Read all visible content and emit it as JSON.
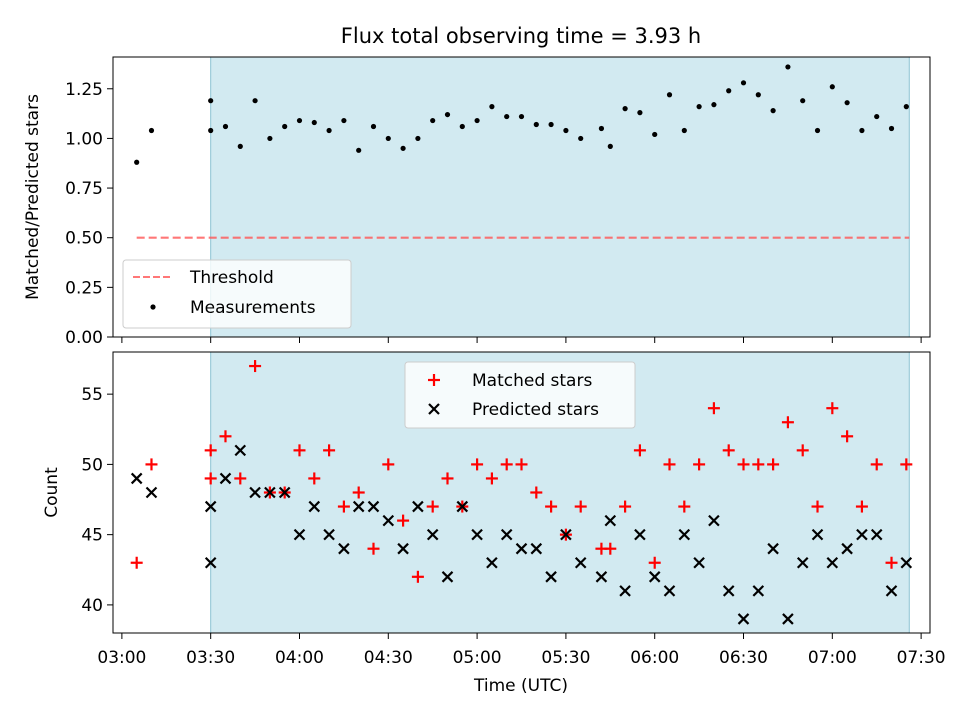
{
  "chart_data": [
    {
      "type": "scatter",
      "title": "Flux total observing time = 3.93 h",
      "ylabel": "Matched/Predicted stars",
      "xlabel": "",
      "xlim": [
        "02:57",
        "07:33"
      ],
      "ylim": [
        0,
        1.41
      ],
      "yticks": [
        "0.00",
        "0.25",
        "0.50",
        "0.75",
        "1.00",
        "1.25"
      ],
      "ytick_values": [
        0,
        0.25,
        0.5,
        0.75,
        1.0,
        1.25
      ],
      "shaded_span": [
        "03:30",
        "07:26"
      ],
      "shade_color": "#add8e6",
      "legend": {
        "location": "lower-left",
        "entries": [
          "Threshold",
          "Measurements"
        ]
      },
      "series": [
        {
          "name": "Threshold",
          "style": "dashed-line",
          "color": "#ff5555",
          "x": [
            "03:05",
            "07:26"
          ],
          "y": [
            0.5,
            0.5
          ]
        },
        {
          "name": "Measurements",
          "style": "dots",
          "color": "#000000",
          "x": [
            "03:05",
            "03:10",
            "03:30",
            "03:30",
            "03:35",
            "03:40",
            "03:45",
            "03:50",
            "03:55",
            "04:00",
            "04:05",
            "04:10",
            "04:15",
            "04:20",
            "04:25",
            "04:30",
            "04:35",
            "04:40",
            "04:45",
            "04:50",
            "04:55",
            "05:00",
            "05:05",
            "05:10",
            "05:15",
            "05:20",
            "05:25",
            "05:30",
            "05:35",
            "05:42",
            "05:45",
            "05:50",
            "05:55",
            "06:00",
            "06:05",
            "06:10",
            "06:15",
            "06:20",
            "06:25",
            "06:30",
            "06:35",
            "06:40",
            "06:45",
            "06:50",
            "06:55",
            "07:00",
            "07:05",
            "07:10",
            "07:15",
            "07:20",
            "07:25"
          ],
          "y": [
            0.88,
            1.04,
            1.19,
            1.04,
            1.06,
            0.96,
            1.19,
            1.0,
            1.06,
            1.09,
            1.08,
            1.04,
            1.09,
            0.94,
            1.06,
            1.0,
            0.95,
            1.0,
            1.09,
            1.12,
            1.06,
            1.09,
            1.16,
            1.11,
            1.11,
            1.07,
            1.07,
            1.04,
            1.0,
            1.05,
            0.96,
            1.15,
            1.13,
            1.02,
            1.22,
            1.04,
            1.16,
            1.17,
            1.24,
            1.28,
            1.22,
            1.14,
            1.36,
            1.19,
            1.04,
            1.26,
            1.18,
            1.04,
            1.11,
            1.05,
            1.16
          ]
        }
      ]
    },
    {
      "type": "scatter",
      "title": "",
      "xlabel": "Time (UTC)",
      "ylabel": "Count",
      "xlim": [
        "02:57",
        "07:33"
      ],
      "ylim": [
        38,
        58
      ],
      "xticks": [
        "03:00",
        "03:30",
        "04:00",
        "04:30",
        "05:00",
        "05:30",
        "06:00",
        "06:30",
        "07:00",
        "07:30"
      ],
      "yticks": [
        "40",
        "45",
        "50",
        "55"
      ],
      "ytick_values": [
        40,
        45,
        50,
        55
      ],
      "shaded_span": [
        "03:30",
        "07:26"
      ],
      "shade_color": "#add8e6",
      "legend": {
        "location": "upper-center",
        "entries": [
          "Matched stars",
          "Predicted stars"
        ]
      },
      "series": [
        {
          "name": "Matched stars",
          "marker": "+",
          "color": "#ff0000",
          "x": [
            "03:05",
            "03:10",
            "03:30",
            "03:30",
            "03:35",
            "03:40",
            "03:45",
            "03:50",
            "03:55",
            "04:00",
            "04:05",
            "04:10",
            "04:15",
            "04:20",
            "04:25",
            "04:30",
            "04:35",
            "04:40",
            "04:45",
            "04:50",
            "04:55",
            "05:00",
            "05:05",
            "05:10",
            "05:15",
            "05:20",
            "05:25",
            "05:30",
            "05:35",
            "05:42",
            "05:45",
            "05:50",
            "05:55",
            "06:00",
            "06:05",
            "06:10",
            "06:15",
            "06:20",
            "06:25",
            "06:30",
            "06:35",
            "06:40",
            "06:45",
            "06:50",
            "06:55",
            "07:00",
            "07:05",
            "07:10",
            "07:15",
            "07:20",
            "07:25"
          ],
          "y": [
            43,
            50,
            51,
            49,
            52,
            49,
            57,
            48,
            48,
            51,
            49,
            51,
            47,
            48,
            44,
            50,
            46,
            42,
            47,
            49,
            47,
            50,
            49,
            50,
            50,
            48,
            47,
            45,
            47,
            44,
            44,
            47,
            51,
            43,
            50,
            47,
            50,
            54,
            51,
            50,
            50,
            50,
            53,
            51,
            47,
            54,
            52,
            47,
            50,
            43,
            50
          ]
        },
        {
          "name": "Predicted stars",
          "marker": "x",
          "color": "#000000",
          "x": [
            "03:05",
            "03:10",
            "03:30",
            "03:30",
            "03:35",
            "03:40",
            "03:45",
            "03:50",
            "03:55",
            "04:00",
            "04:05",
            "04:10",
            "04:15",
            "04:20",
            "04:25",
            "04:30",
            "04:35",
            "04:40",
            "04:45",
            "04:50",
            "04:55",
            "05:00",
            "05:05",
            "05:10",
            "05:15",
            "05:20",
            "05:25",
            "05:30",
            "05:35",
            "05:42",
            "05:45",
            "05:50",
            "05:55",
            "06:00",
            "06:05",
            "06:10",
            "06:15",
            "06:20",
            "06:25",
            "06:30",
            "06:35",
            "06:40",
            "06:45",
            "06:50",
            "06:55",
            "07:00",
            "07:05",
            "07:10",
            "07:15",
            "07:20",
            "07:25"
          ],
          "y": [
            49,
            48,
            43,
            47,
            49,
            51,
            48,
            48,
            48,
            45,
            47,
            45,
            44,
            47,
            47,
            46,
            44,
            47,
            45,
            42,
            47,
            45,
            43,
            45,
            44,
            44,
            42,
            45,
            43,
            42,
            46,
            41,
            45,
            42,
            41,
            45,
            43,
            46,
            41,
            39,
            41,
            44,
            39,
            43,
            45,
            43,
            44,
            45,
            45,
            41,
            43
          ]
        }
      ]
    }
  ]
}
